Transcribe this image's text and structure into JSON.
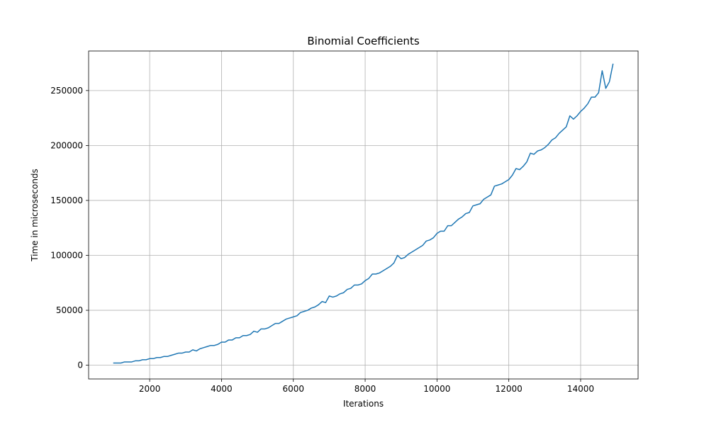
{
  "chart_data": {
    "type": "line",
    "title": "Binomial Coefficients",
    "xlabel": "Iterations",
    "ylabel": "Time in microseconds",
    "xlim": [
      300,
      15600
    ],
    "ylim": [
      -12500,
      286000
    ],
    "xticks": [
      2000,
      4000,
      6000,
      8000,
      10000,
      12000,
      14000
    ],
    "xtick_labels": [
      "2000",
      "4000",
      "6000",
      "8000",
      "10000",
      "12000",
      "14000"
    ],
    "yticks": [
      0,
      50000,
      100000,
      150000,
      200000,
      250000
    ],
    "ytick_labels": [
      "0",
      "50000",
      "100000",
      "150000",
      "200000",
      "250000"
    ],
    "grid": true,
    "line_color": "#1f77b4",
    "series": [
      {
        "values_x": [
          1000,
          1100,
          1200,
          1300,
          1400,
          1500,
          1600,
          1700,
          1800,
          1900,
          2000,
          2100,
          2200,
          2300,
          2400,
          2500,
          2600,
          2700,
          2800,
          2900,
          3000,
          3100,
          3200,
          3300,
          3400,
          3500,
          3600,
          3700,
          3800,
          3900,
          4000,
          4100,
          4200,
          4300,
          4400,
          4500,
          4600,
          4700,
          4800,
          4900,
          5000,
          5100,
          5200,
          5300,
          5400,
          5500,
          5600,
          5700,
          5800,
          5900,
          6000,
          6100,
          6200,
          6300,
          6400,
          6500,
          6600,
          6700,
          6800,
          6900,
          7000,
          7100,
          7200,
          7300,
          7400,
          7500,
          7600,
          7700,
          7800,
          7900,
          8000,
          8100,
          8200,
          8300,
          8400,
          8500,
          8600,
          8700,
          8800,
          8900,
          9000,
          9100,
          9200,
          9300,
          9400,
          9500,
          9600,
          9700,
          9800,
          9900,
          10000,
          10100,
          10200,
          10300,
          10400,
          10500,
          10600,
          10700,
          10800,
          10900,
          11000,
          11100,
          11200,
          11300,
          11400,
          11500,
          11600,
          11700,
          11800,
          11900,
          12000,
          12100,
          12200,
          12300,
          12400,
          12500,
          12600,
          12700,
          12800,
          12900,
          13000,
          13100,
          13200,
          13300,
          13400,
          13500,
          13600,
          13700,
          13800,
          13900,
          14000,
          14100,
          14200,
          14300,
          14400,
          14500,
          14600,
          14700,
          14800,
          14900
        ],
        "values": [
          2000,
          2000,
          2000,
          3000,
          3000,
          3000,
          4000,
          4000,
          5000,
          5000,
          6000,
          6000,
          7000,
          7000,
          8000,
          8000,
          9000,
          10000,
          11000,
          11000,
          12000,
          12000,
          14000,
          13000,
          15000,
          16000,
          17000,
          18000,
          18000,
          19000,
          21000,
          21000,
          23000,
          23000,
          25000,
          25000,
          27000,
          27000,
          28000,
          31000,
          30000,
          33000,
          33000,
          34000,
          36000,
          38000,
          38000,
          40000,
          42000,
          43000,
          44000,
          45000,
          48000,
          49000,
          50000,
          52000,
          53000,
          55000,
          58000,
          57000,
          63000,
          62000,
          63000,
          65000,
          66000,
          69000,
          70000,
          73000,
          73000,
          74000,
          77000,
          79000,
          83000,
          83000,
          84000,
          86000,
          88000,
          90000,
          93000,
          100000,
          97000,
          98000,
          101000,
          103000,
          105000,
          107000,
          109000,
          113000,
          114000,
          116000,
          120000,
          122000,
          122000,
          127000,
          127000,
          130000,
          133000,
          135000,
          138000,
          139000,
          145000,
          146000,
          147000,
          151000,
          153000,
          155000,
          163000,
          164000,
          165000,
          167000,
          169000,
          173000,
          179000,
          178000,
          181000,
          185000,
          193000,
          192000,
          195000,
          196000,
          198000,
          201000,
          205000,
          207000,
          211000,
          214000,
          217000,
          227000,
          224000,
          227000,
          231000,
          234000,
          238000,
          244000,
          244000,
          248000,
          268000,
          252000,
          258000,
          274000
        ]
      }
    ]
  }
}
